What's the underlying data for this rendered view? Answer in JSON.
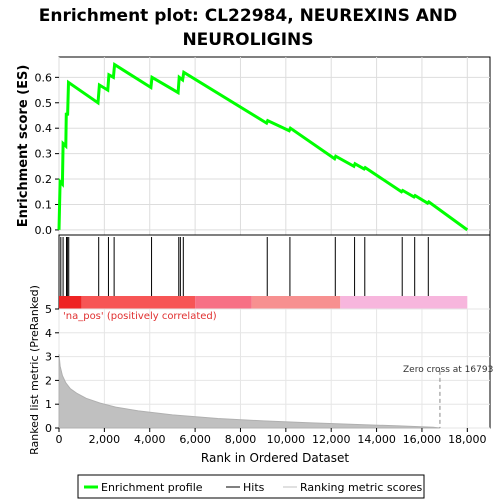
{
  "chart_data": [
    {
      "type": "line",
      "title": "Enrichment plot: CL22984, NEUREXINS AND NEUROLIGINS",
      "title_lines": [
        "Enrichment plot: CL22984, NEUREXINS AND",
        "NEUROLIGINS"
      ],
      "ylabel": "Enrichment score (ES)",
      "ylim": [
        -0.02,
        0.68
      ],
      "yticks": [
        "0.0",
        "0.1",
        "0.2",
        "0.3",
        "0.4",
        "0.5",
        "0.6"
      ],
      "grid": true,
      "series": [
        {
          "name": "Enrichment profile",
          "color": "#00ff00",
          "x": [
            0,
            50,
            150,
            180,
            300,
            320,
            380,
            420,
            1720,
            1780,
            2150,
            2200,
            2400,
            2450,
            4050,
            4100,
            5250,
            5300,
            5450,
            5500,
            9150,
            9200,
            10150,
            10200,
            12150,
            12200,
            13000,
            13050,
            13450,
            13500,
            15100,
            15150,
            15650,
            15700,
            16250,
            16300,
            18000
          ],
          "y": [
            0.0,
            0.19,
            0.18,
            0.34,
            0.33,
            0.46,
            0.45,
            0.58,
            0.5,
            0.57,
            0.55,
            0.61,
            0.6,
            0.65,
            0.56,
            0.6,
            0.54,
            0.6,
            0.59,
            0.62,
            0.42,
            0.43,
            0.39,
            0.4,
            0.28,
            0.29,
            0.25,
            0.26,
            0.24,
            0.245,
            0.15,
            0.155,
            0.13,
            0.135,
            0.105,
            0.11,
            0.0
          ]
        }
      ]
    },
    {
      "type": "hits",
      "hits": [
        80,
        180,
        330,
        380,
        430,
        1750,
        2180,
        2430,
        4080,
        5280,
        5350,
        5480,
        9180,
        10180,
        12180,
        13030,
        13480,
        15130,
        15680,
        16280
      ],
      "hit_color": "#000000",
      "bar_segments": [
        {
          "from": 0,
          "to": 1000,
          "color": "#ee2222"
        },
        {
          "from": 1000,
          "to": 6000,
          "color": "#f75555"
        },
        {
          "from": 6000,
          "to": 8500,
          "color": "#f77085"
        },
        {
          "from": 8500,
          "to": 12400,
          "color": "#f79090"
        },
        {
          "from": 12400,
          "to": 18000,
          "color": "#f7b6dd"
        }
      ]
    },
    {
      "type": "area",
      "ylabel": "Ranked list metric (PreRanked)",
      "xlabel": "Rank in Ordered Dataset",
      "xlim": [
        0,
        19000
      ],
      "ylim": [
        0,
        5
      ],
      "xticks": [
        "0",
        "2,000",
        "4,000",
        "6,000",
        "8,000",
        "10,000",
        "12,000",
        "14,000",
        "16,000",
        "18,000"
      ],
      "yticks": [
        "0",
        "1",
        "2",
        "3",
        "4",
        "5"
      ],
      "annotation_pos": "'na_pos' (positively correlated)",
      "annotation_zero": "Zero cross at 16793",
      "zero_cross": 16793,
      "fill_color": "#c0c0c0",
      "x": [
        0,
        50,
        150,
        300,
        500,
        800,
        1200,
        1800,
        2500,
        3500,
        5000,
        7000,
        9000,
        11000,
        13000,
        15000,
        16500,
        16793
      ],
      "y": [
        3.1,
        2.6,
        2.2,
        1.9,
        1.65,
        1.45,
        1.25,
        1.05,
        0.88,
        0.72,
        0.55,
        0.4,
        0.3,
        0.22,
        0.15,
        0.09,
        0.03,
        0.0
      ]
    }
  ],
  "legend": {
    "items": [
      {
        "label": "Enrichment profile",
        "color": "#00ff00",
        "style": "thick"
      },
      {
        "label": "Hits",
        "color": "#000000",
        "style": "thin"
      },
      {
        "label": "Ranking metric scores",
        "color": "#c0c0c0",
        "style": "thin"
      }
    ]
  }
}
